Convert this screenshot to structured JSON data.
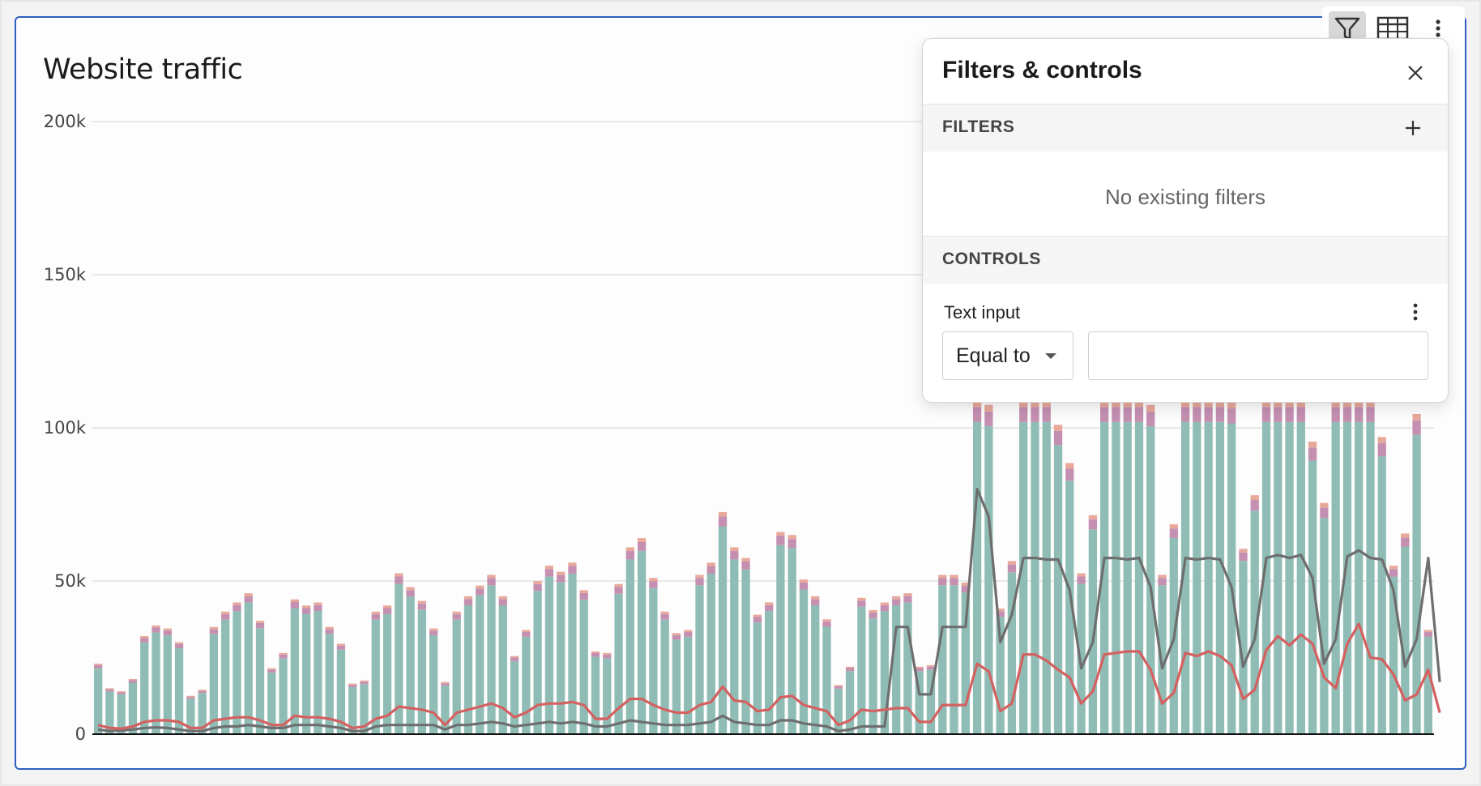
{
  "card": {
    "title": "Website traffic"
  },
  "toolbar": {
    "icons": [
      "filter-icon",
      "table-icon",
      "more-vertical-icon"
    ]
  },
  "panel": {
    "title": "Filters & controls",
    "filters_label": "FILTERS",
    "no_filters_text": "No existing filters",
    "controls_label": "CONTROLS",
    "control": {
      "label": "Text input",
      "operator": "Equal to",
      "value": "",
      "placeholder": ""
    }
  },
  "colors": {
    "bar_base": "#8fbdb5",
    "bar_segment_2": "#c48fb1",
    "bar_segment_3": "#e8a89a",
    "line_1": "#6e6e6e",
    "line_2": "#d46060",
    "accent_border": "#2c5fbf"
  },
  "chart_data": {
    "type": "bar",
    "title": "Website traffic",
    "xlabel": "",
    "ylabel": "",
    "ylim": [
      0,
      200000
    ],
    "yticks": [
      0,
      50000,
      100000,
      150000,
      200000
    ],
    "ytick_labels": [
      "0",
      "50k",
      "100k",
      "150k",
      "200k"
    ],
    "grid": true,
    "bars_stacked": true,
    "bar_totals": [
      23000,
      15000,
      14000,
      18000,
      32000,
      35500,
      34500,
      30000,
      12500,
      14500,
      35000,
      40000,
      43000,
      46000,
      37000,
      21500,
      26500,
      44000,
      42000,
      43000,
      35000,
      29500,
      16500,
      17500,
      40000,
      42000,
      52500,
      48000,
      43500,
      34500,
      17000,
      40000,
      45000,
      48500,
      52000,
      45000,
      25500,
      34000,
      50000,
      55000,
      53000,
      56000,
      47000,
      27000,
      26500,
      49000,
      61000,
      64000,
      51000,
      40000,
      33000,
      34000,
      52000,
      56000,
      72500,
      61000,
      57500,
      39000,
      43000,
      66000,
      65000,
      50500,
      45000,
      37500,
      16000,
      22000,
      44500,
      40500,
      43000,
      45000,
      46000,
      22000,
      22500,
      52000,
      52000,
      49500,
      109000,
      107500,
      41000,
      56500,
      109000,
      109000,
      109000,
      101000,
      88500,
      52500,
      71500,
      109000,
      109000,
      109000,
      109000,
      107500,
      52000,
      68500,
      109000,
      109000,
      109000,
      109000,
      108500,
      60500,
      78000,
      109000,
      109000,
      109000,
      109000,
      95500,
      75500,
      109000,
      109000,
      109000,
      109000,
      97000,
      55000,
      65500,
      104500,
      34000
    ],
    "series": [
      {
        "type": "line",
        "values": [
          1500,
          1000,
          1200,
          1500,
          2000,
          2200,
          2000,
          1500,
          1000,
          1000,
          2000,
          2500,
          2500,
          3000,
          2500,
          2000,
          2000,
          3000,
          3000,
          3000,
          2500,
          2000,
          1000,
          1000,
          2500,
          3000,
          3000,
          3000,
          3000,
          3000,
          1500,
          3000,
          3000,
          3500,
          4000,
          3500,
          2500,
          3000,
          3500,
          4000,
          3500,
          4000,
          3500,
          2500,
          2500,
          3500,
          4500,
          4000,
          3500,
          3000,
          3000,
          3000,
          3500,
          4000,
          6000,
          4000,
          3500,
          3000,
          3000,
          4500,
          4500,
          3500,
          3000,
          2500,
          1000,
          1500,
          2500,
          2500,
          2500,
          35000,
          35000,
          13000,
          13000,
          35000,
          35000,
          35000,
          80000,
          71000,
          30000,
          39000,
          57500,
          57500,
          57000,
          57000,
          47000,
          21500,
          30000,
          57500,
          57500,
          57000,
          57500,
          48000,
          21500,
          31000,
          57500,
          57000,
          57500,
          57000,
          48000,
          22000,
          31000,
          57500,
          58500,
          57500,
          58500,
          51000,
          23000,
          31000,
          58000,
          60000,
          57500,
          57000,
          47000,
          22000,
          31000,
          57500,
          17000
        ]
      },
      {
        "type": "line",
        "values": [
          3000,
          2000,
          1800,
          2500,
          4000,
          4500,
          4500,
          4000,
          2000,
          2000,
          4500,
          5000,
          5500,
          5500,
          4500,
          3000,
          3000,
          6000,
          5500,
          5500,
          5000,
          4000,
          2000,
          2500,
          5000,
          6000,
          9000,
          8500,
          8000,
          7000,
          3000,
          7000,
          8000,
          9000,
          10000,
          8500,
          5500,
          7000,
          9500,
          10000,
          10000,
          10500,
          9500,
          5000,
          5000,
          8500,
          11500,
          11500,
          9500,
          8000,
          7000,
          7000,
          9500,
          10500,
          15500,
          11000,
          10500,
          7500,
          8000,
          12000,
          12500,
          9500,
          8500,
          7500,
          3000,
          4500,
          8000,
          7500,
          8000,
          8500,
          8500,
          4000,
          4000,
          9500,
          9500,
          9500,
          23000,
          20500,
          7500,
          10000,
          26000,
          26000,
          24000,
          21000,
          18500,
          10000,
          14000,
          26000,
          26500,
          27000,
          27000,
          21000,
          10000,
          13500,
          26500,
          25500,
          27000,
          25500,
          22500,
          11500,
          14500,
          27500,
          32000,
          29000,
          32500,
          29500,
          18500,
          15000,
          29500,
          36000,
          25000,
          24500,
          19500,
          11000,
          13000,
          21000,
          7000
        ]
      }
    ]
  }
}
